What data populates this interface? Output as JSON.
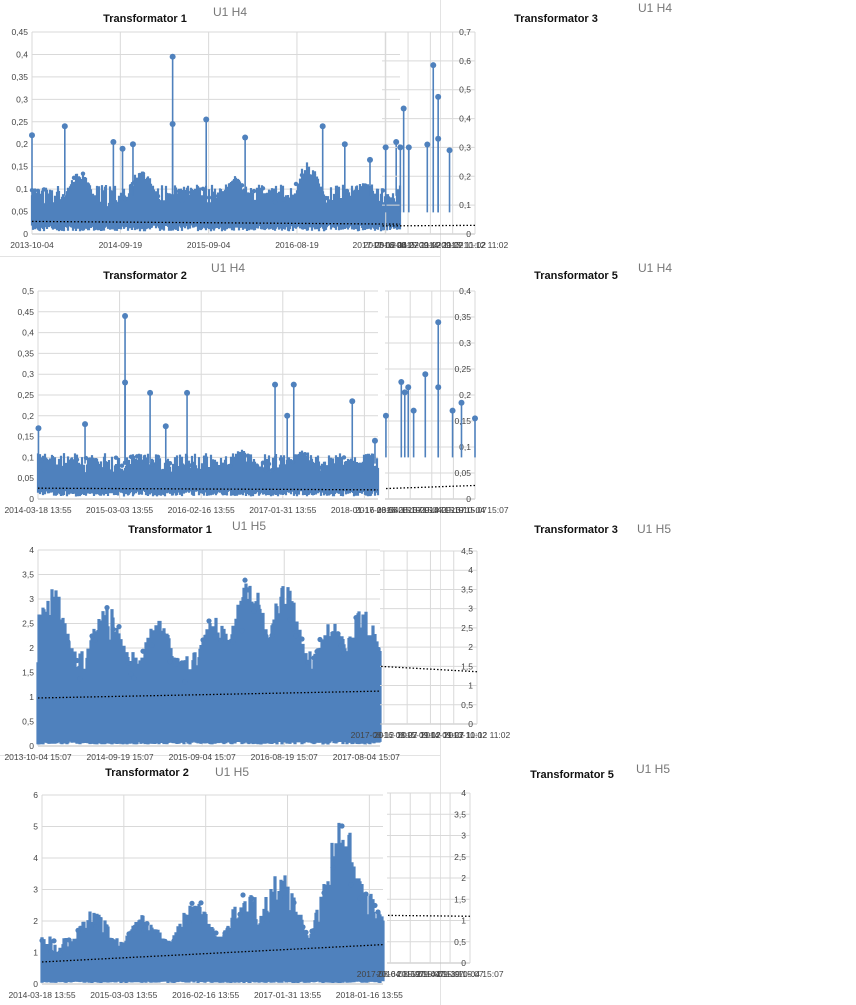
{
  "colors": {
    "series": "#4f81bd",
    "trend": "#000000"
  },
  "chart_data": [
    {
      "type": "line",
      "title": "Transformator 1",
      "subtitle": "U1 H4",
      "yticks": [
        "0",
        "0,05",
        "0,1",
        "0,15",
        "0,2",
        "0,25",
        "0,3",
        "0,35",
        "0,4",
        "0,45"
      ],
      "ylim": [
        0,
        0.45
      ],
      "xticks": [
        "2013-10-04",
        "2014-09-19",
        "2015-09-04",
        "2016-08-19",
        "2017-08-04"
      ],
      "x_range": [
        "2013-10-04",
        "2017-09-20"
      ],
      "baseline": [
        0.02,
        0.085
      ],
      "base_peaks": [
        [
          0.0,
          0.1
        ],
        [
          0.13,
          0.14
        ],
        [
          0.3,
          0.15
        ],
        [
          0.55,
          0.13
        ],
        [
          0.75,
          0.16
        ],
        [
          0.9,
          0.12
        ]
      ],
      "spikes": [
        {
          "x": "2013-10-04",
          "y": 0.22
        },
        {
          "x": "2014-02-10",
          "y": 0.24
        },
        {
          "x": "2014-08-20",
          "y": 0.205
        },
        {
          "x": "2014-09-25",
          "y": 0.19
        },
        {
          "x": "2014-11-05",
          "y": 0.2
        },
        {
          "x": "2015-04-10",
          "y": 0.395
        },
        {
          "x": "2015-04-10",
          "y": 0.245
        },
        {
          "x": "2015-08-20",
          "y": 0.255
        },
        {
          "x": "2016-01-20",
          "y": 0.215
        },
        {
          "x": "2016-11-20",
          "y": 0.24
        },
        {
          "x": "2017-02-15",
          "y": 0.2
        },
        {
          "x": "2017-05-25",
          "y": 0.165
        },
        {
          "x": "2017-09-05",
          "y": 0.205
        }
      ],
      "gaps": [],
      "trend": [
        0.028,
        0.022
      ],
      "seed": 11
    },
    {
      "type": "line",
      "title": "Transformator 3",
      "subtitle": "U1 H4",
      "yticks": [
        "0",
        "0,1",
        "0,2",
        "0,3",
        "0,4",
        "0,5",
        "0,6",
        "0,7"
      ],
      "ylim": [
        0,
        0.7
      ],
      "xticks": [
        "2013-10-12 11:02",
        "2014-09-27 11:02",
        "2015-09-12 11:02",
        "2016-08-27 11:02",
        "2017-08-12 11:02"
      ],
      "x_range": [
        "2013-10-12",
        "2017-09-20"
      ],
      "baseline": [
        0.02,
        0.075
      ],
      "base_peaks": [
        [
          0.05,
          0.1
        ],
        [
          0.2,
          0.12
        ],
        [
          0.4,
          0.1
        ],
        [
          0.6,
          0.13
        ],
        [
          0.8,
          0.12
        ]
      ],
      "spikes": [
        {
          "x": "2014-11-10",
          "y": 0.29
        },
        {
          "x": "2015-05-05",
          "y": 0.475
        },
        {
          "x": "2015-05-05",
          "y": 0.33
        },
        {
          "x": "2015-07-20",
          "y": 0.585
        },
        {
          "x": "2015-10-20",
          "y": 0.31
        },
        {
          "x": "2016-08-01",
          "y": 0.3
        },
        {
          "x": "2016-10-20",
          "y": 0.435
        },
        {
          "x": "2016-12-10",
          "y": 0.3
        },
        {
          "x": "2017-07-25",
          "y": 0.3
        }
      ],
      "gaps": [
        [
          "2014-11-20",
          "2014-12-20"
        ],
        [
          "2015-09-05",
          "2015-10-10"
        ]
      ],
      "trend": [
        0.03,
        0.028
      ],
      "seed": 23
    },
    {
      "type": "line",
      "title": "Transformator 2",
      "subtitle": "U1 H4",
      "yticks": [
        "0",
        "0,05",
        "0,1",
        "0,15",
        "0,2",
        "0,25",
        "0,3",
        "0,35",
        "0,4",
        "0,45",
        "0,5"
      ],
      "ylim": [
        0,
        0.5
      ],
      "xticks": [
        "2014-03-18 13:55",
        "2015-03-03 13:55",
        "2016-02-16 13:55",
        "2017-01-31 13:55",
        "2018-01-16 13:55"
      ],
      "x_range": [
        "2014-03-18",
        "2018-03-10"
      ],
      "baseline": [
        0.02,
        0.085
      ],
      "base_peaks": [
        [
          0.1,
          0.1
        ],
        [
          0.3,
          0.11
        ],
        [
          0.6,
          0.12
        ],
        [
          0.78,
          0.12
        ],
        [
          0.92,
          0.1
        ]
      ],
      "spikes": [
        {
          "x": "2014-03-20",
          "y": 0.17
        },
        {
          "x": "2014-10-05",
          "y": 0.18
        },
        {
          "x": "2015-03-25",
          "y": 0.44
        },
        {
          "x": "2015-03-25",
          "y": 0.28
        },
        {
          "x": "2015-07-10",
          "y": 0.255
        },
        {
          "x": "2015-09-15",
          "y": 0.175
        },
        {
          "x": "2015-12-15",
          "y": 0.255
        },
        {
          "x": "2016-12-25",
          "y": 0.275
        },
        {
          "x": "2017-03-15",
          "y": 0.275
        },
        {
          "x": "2017-02-15",
          "y": 0.2
        },
        {
          "x": "2017-11-20",
          "y": 0.235
        },
        {
          "x": "2018-02-25",
          "y": 0.14
        }
      ],
      "gaps": [],
      "trend": [
        0.026,
        0.022
      ],
      "seed": 37
    },
    {
      "type": "line",
      "title": "Transformator 5",
      "subtitle": "U1 H4",
      "yticks": [
        "0",
        "0,05",
        "0,1",
        "0,15",
        "0,2",
        "0,25",
        "0,3",
        "0,35",
        "0,4"
      ],
      "ylim": [
        0,
        0.4
      ],
      "xticks": [
        "2013-10-04 15:07",
        "2014-09-19 15:07",
        "2015-09-04 15:07",
        "2016-08-19 15:07",
        "2017-08-04 15:07"
      ],
      "x_range": [
        "2013-10-04",
        "2017-09-25"
      ],
      "baseline": [
        0.02,
        0.08
      ],
      "base_peaks": [
        [
          0.1,
          0.1
        ],
        [
          0.3,
          0.1
        ],
        [
          0.55,
          0.11
        ],
        [
          0.72,
          0.13
        ],
        [
          0.88,
          0.1
        ]
      ],
      "spikes": [
        {
          "x": "2013-10-04",
          "y": 0.155
        },
        {
          "x": "2014-05-10",
          "y": 0.185
        },
        {
          "x": "2014-10-01",
          "y": 0.17
        },
        {
          "x": "2015-05-20",
          "y": 0.34
        },
        {
          "x": "2015-05-20",
          "y": 0.215
        },
        {
          "x": "2015-12-15",
          "y": 0.24
        },
        {
          "x": "2016-06-20",
          "y": 0.17
        },
        {
          "x": "2016-09-15",
          "y": 0.215
        },
        {
          "x": "2016-11-10",
          "y": 0.205
        },
        {
          "x": "2017-01-05",
          "y": 0.225
        },
        {
          "x": "2017-09-10",
          "y": 0.16
        }
      ],
      "gaps": [],
      "trend": [
        0.026,
        0.02
      ],
      "seed": 53
    },
    {
      "type": "line",
      "title": "Transformator 1",
      "subtitle": "U1 H5",
      "yticks": [
        "0",
        "0,5",
        "1",
        "1,5",
        "2",
        "2,5",
        "3",
        "3,5",
        "4"
      ],
      "ylim": [
        0,
        4
      ],
      "xticks": [
        "2013-10-04 15:07",
        "2014-09-19 15:07",
        "2015-09-04 15:07",
        "2016-08-19 15:07",
        "2017-08-04 15:07"
      ],
      "x_range": [
        "2013-10-04",
        "2017-09-25"
      ],
      "baseline": [
        0.1,
        1.5
      ],
      "base_peaks": [
        [
          0.04,
          3.3
        ],
        [
          0.2,
          3.0
        ],
        [
          0.35,
          2.6
        ],
        [
          0.52,
          2.7
        ],
        [
          0.62,
          3.5
        ],
        [
          0.72,
          3.3
        ],
        [
          0.86,
          2.6
        ],
        [
          0.95,
          2.8
        ]
      ],
      "spikes": [],
      "gaps": [],
      "trend": [
        0.98,
        1.12
      ],
      "seed": 71,
      "dense": true
    },
    {
      "type": "line",
      "title": "Transformator 3",
      "subtitle": "U1 H5",
      "yticks": [
        "0",
        "0,5",
        "1",
        "1,5",
        "2",
        "2,5",
        "3",
        "3,5",
        "4",
        "4,5"
      ],
      "ylim": [
        0,
        4.5
      ],
      "xticks": [
        "2013-10-12 11:02",
        "2014-09-27 11:02",
        "2015-09-12 11:02",
        "2016-08-27 11:02",
        "2017-08-12 11:02"
      ],
      "x_range": [
        "2013-10-12",
        "2017-09-20"
      ],
      "baseline": [
        0.2,
        1.6
      ],
      "base_peaks": [
        [
          0.05,
          3.4
        ],
        [
          0.22,
          3.1
        ],
        [
          0.34,
          3.7
        ],
        [
          0.45,
          3.6
        ],
        [
          0.56,
          3.7
        ],
        [
          0.7,
          3.2
        ],
        [
          0.9,
          2.7
        ]
      ],
      "spikes": [],
      "gaps": [
        [
          "2014-11-20",
          "2014-12-20"
        ],
        [
          "2015-09-05",
          "2015-10-10"
        ]
      ],
      "trend": [
        1.36,
        1.5
      ],
      "seed": 89,
      "dense": true
    },
    {
      "type": "line",
      "title": "Transformator 2",
      "subtitle": "U1 H5",
      "yticks": [
        "0",
        "1",
        "2",
        "3",
        "4",
        "5",
        "6"
      ],
      "ylim": [
        0,
        6
      ],
      "xticks": [
        "2014-03-18 13:55",
        "2015-03-03 13:55",
        "2016-02-16 13:55",
        "2017-01-31 13:55",
        "2018-01-16 13:55"
      ],
      "x_range": [
        "2014-03-18",
        "2018-03-10"
      ],
      "baseline": [
        0.1,
        1.2
      ],
      "base_peaks": [
        [
          0.05,
          1.0
        ],
        [
          0.15,
          2.4
        ],
        [
          0.3,
          2.2
        ],
        [
          0.45,
          2.7
        ],
        [
          0.6,
          3.0
        ],
        [
          0.7,
          3.6
        ],
        [
          0.88,
          5.2
        ],
        [
          0.95,
          3.0
        ]
      ],
      "spikes": [],
      "gaps": [],
      "trend": [
        0.7,
        1.25
      ],
      "seed": 101,
      "dense": true
    },
    {
      "type": "line",
      "title": "Transformator 5",
      "subtitle": "U1 H5",
      "yticks": [
        "0",
        "0,5",
        "1",
        "1,5",
        "2",
        "2,5",
        "3",
        "3,5",
        "4"
      ],
      "ylim": [
        0,
        4
      ],
      "xticks": [
        "2013-10-04 15:07",
        "2014-09-19 15:07",
        "2015-09-04 15:07",
        "2016-08-19 15:07",
        "2017-08-04 15:07"
      ],
      "x_range": [
        "2013-10-04",
        "2017-09-25"
      ],
      "baseline": [
        0.1,
        1.4
      ],
      "base_peaks": [
        [
          0.05,
          2.5
        ],
        [
          0.25,
          2.5
        ],
        [
          0.45,
          2.5
        ],
        [
          0.6,
          2.6
        ],
        [
          0.72,
          3.3
        ],
        [
          0.85,
          2.8
        ],
        [
          0.95,
          2.7
        ]
      ],
      "spikes": [],
      "gaps": [],
      "trend": [
        1.1,
        1.12
      ],
      "seed": 127,
      "dense": true
    }
  ]
}
